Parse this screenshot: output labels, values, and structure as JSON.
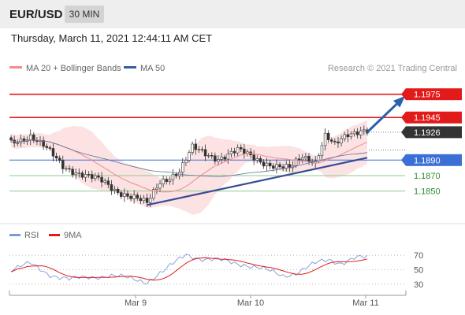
{
  "header": {
    "symbol": "EUR/USD",
    "timeframe": "30 MIN",
    "datetime": "Thursday, March 11, 2021 12:44:11 AM CET"
  },
  "colors": {
    "background": "#ffffff",
    "header_bg": "#eeeeee",
    "resistance": "#e31a1a",
    "support": "#3b6fd6",
    "target_line": "#8fca8f",
    "target_text": "#2e8b2e",
    "current_price_bg": "#333333",
    "bollinger_fill": "#fbd8d8",
    "ma20": "#f28b8b",
    "ma50": "#5e7294",
    "trendline": "#344e94",
    "arrow": "#2c5fac",
    "candle_up": "#ffffff",
    "candle_down": "#333333",
    "rsi_line": "#7a9ad8",
    "rsi_ma": "#e31a1a"
  },
  "chart_data": [
    {
      "type": "candlestick",
      "legend": [
        {
          "name": "MA 20 + Bollinger Bands",
          "color": "#f28b8b"
        },
        {
          "name": "MA 50",
          "color": "#355ea0"
        }
      ],
      "watermark": "Research © 2021 Trading Central",
      "x_ticks": [
        "Mar 9",
        "Mar 10",
        "Mar 11"
      ],
      "ylim": [
        1.181,
        1.1995
      ],
      "price_levels": [
        {
          "value": 1.1975,
          "label": "1.1975",
          "kind": "resistance"
        },
        {
          "value": 1.1945,
          "label": "1.1945",
          "kind": "resistance"
        },
        {
          "value": 1.1926,
          "label": "1.1926",
          "kind": "current"
        },
        {
          "value": 1.189,
          "label": "1.1890",
          "kind": "pivot"
        },
        {
          "value": 1.187,
          "label": "1.1870",
          "kind": "target"
        },
        {
          "value": 1.185,
          "label": "1.1850",
          "kind": "target"
        }
      ],
      "trendline": [
        {
          "bar": 42,
          "price": 1.1832
        },
        {
          "bar": 110,
          "price": 1.1893
        }
      ],
      "forecast_arrow": [
        {
          "bar": 110,
          "price": 1.1926
        },
        {
          "bar": 121,
          "price": 1.197
        }
      ],
      "ohlc_anchors": [
        {
          "bar": 0,
          "close": 1.1912
        },
        {
          "bar": 6,
          "close": 1.1922
        },
        {
          "bar": 10,
          "close": 1.1908
        },
        {
          "bar": 16,
          "close": 1.1882
        },
        {
          "bar": 22,
          "close": 1.1872
        },
        {
          "bar": 28,
          "close": 1.1862
        },
        {
          "bar": 32,
          "close": 1.1852
        },
        {
          "bar": 38,
          "close": 1.1842
        },
        {
          "bar": 42,
          "close": 1.1833
        },
        {
          "bar": 46,
          "close": 1.1862
        },
        {
          "bar": 52,
          "close": 1.1876
        },
        {
          "bar": 56,
          "close": 1.1905
        },
        {
          "bar": 60,
          "close": 1.1898
        },
        {
          "bar": 64,
          "close": 1.1893
        },
        {
          "bar": 70,
          "close": 1.1902
        },
        {
          "bar": 76,
          "close": 1.1891
        },
        {
          "bar": 82,
          "close": 1.1882
        },
        {
          "bar": 86,
          "close": 1.1878
        },
        {
          "bar": 90,
          "close": 1.1895
        },
        {
          "bar": 94,
          "close": 1.1889
        },
        {
          "bar": 97,
          "close": 1.1922
        },
        {
          "bar": 100,
          "close": 1.1908
        },
        {
          "bar": 104,
          "close": 1.1922
        },
        {
          "bar": 108,
          "close": 1.193
        }
      ]
    },
    {
      "type": "line",
      "legend": [
        {
          "name": "RSI",
          "color": "#7a9ad8"
        },
        {
          "name": "9MA",
          "color": "#e31a1a"
        }
      ],
      "ylim": [
        20,
        80
      ],
      "y_ticks": [
        {
          "value": 70,
          "label": "70"
        },
        {
          "value": 50,
          "label": "50"
        },
        {
          "value": 30,
          "label": "30"
        }
      ],
      "rsi_anchors": [
        {
          "bar": 0,
          "value": 50
        },
        {
          "bar": 6,
          "value": 58
        },
        {
          "bar": 12,
          "value": 44
        },
        {
          "bar": 18,
          "value": 36
        },
        {
          "bar": 24,
          "value": 40
        },
        {
          "bar": 30,
          "value": 42
        },
        {
          "bar": 36,
          "value": 38
        },
        {
          "bar": 42,
          "value": 34
        },
        {
          "bar": 48,
          "value": 50
        },
        {
          "bar": 54,
          "value": 72
        },
        {
          "bar": 60,
          "value": 64
        },
        {
          "bar": 66,
          "value": 62
        },
        {
          "bar": 72,
          "value": 58
        },
        {
          "bar": 78,
          "value": 50
        },
        {
          "bar": 84,
          "value": 42
        },
        {
          "bar": 88,
          "value": 46
        },
        {
          "bar": 94,
          "value": 58
        },
        {
          "bar": 98,
          "value": 64
        },
        {
          "bar": 102,
          "value": 60
        },
        {
          "bar": 106,
          "value": 66
        },
        {
          "bar": 110,
          "value": 66
        }
      ]
    }
  ]
}
